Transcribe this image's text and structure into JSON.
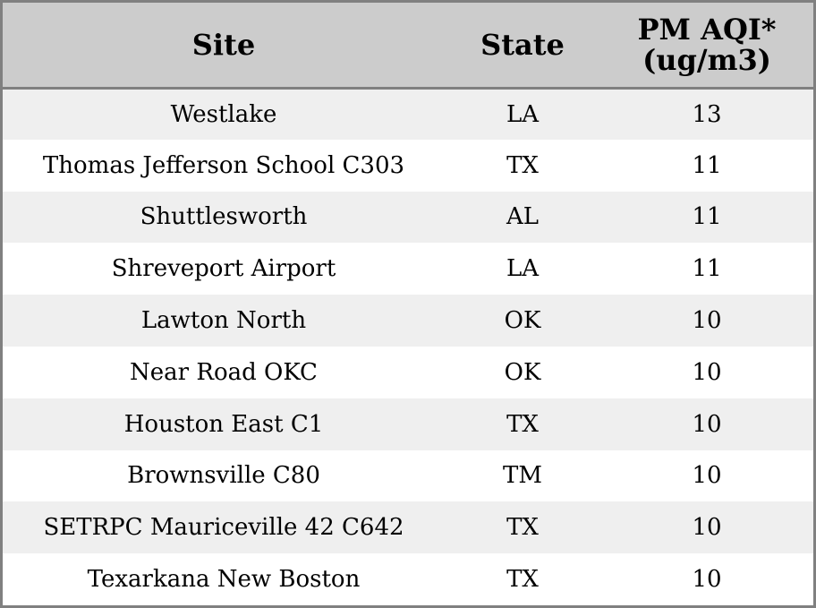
{
  "chart_data": {
    "type": "table",
    "columns": [
      "Site",
      "State",
      "PM AQI*\n(ug/m3)"
    ],
    "rows": [
      {
        "site": "Westlake",
        "state": "LA",
        "aqi": 13
      },
      {
        "site": "Thomas Jefferson School C303",
        "state": "TX",
        "aqi": 11
      },
      {
        "site": "Shuttlesworth",
        "state": "AL",
        "aqi": 11
      },
      {
        "site": "Shreveport Airport",
        "state": "LA",
        "aqi": 11
      },
      {
        "site": "Lawton North",
        "state": "OK",
        "aqi": 10
      },
      {
        "site": "Near Road OKC",
        "state": "OK",
        "aqi": 10
      },
      {
        "site": "Houston East C1",
        "state": "TX",
        "aqi": 10
      },
      {
        "site": "Brownsville C80",
        "state": "TM",
        "aqi": 10
      },
      {
        "site": "SETRPC Mauriceville 42 C642",
        "state": "TX",
        "aqi": 10
      },
      {
        "site": "Texarkana New Boston",
        "state": "TX",
        "aqi": 10
      }
    ]
  },
  "colors": {
    "header_bg": "#cccccc",
    "row_alt_bg": "#efefef",
    "row_bg": "#ffffff",
    "border": "#808080"
  }
}
